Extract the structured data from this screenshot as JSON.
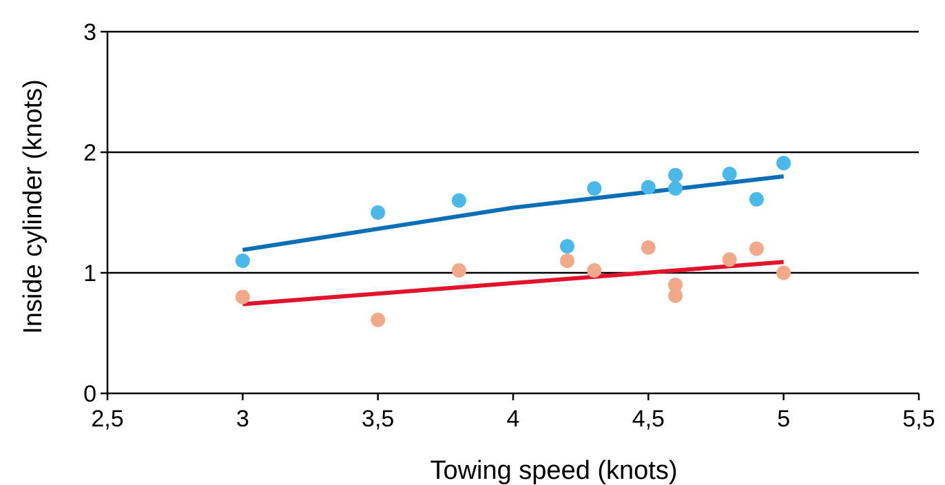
{
  "chart_data": {
    "type": "scatter",
    "title": "",
    "xlabel": "Towing speed (knots)",
    "ylabel": "Inside cylinder (knots)",
    "xlim": [
      2.5,
      5.5
    ],
    "ylim": [
      0,
      3
    ],
    "x_ticks": [
      2.5,
      3,
      3.5,
      4,
      4.5,
      5,
      5.5
    ],
    "x_tick_labels": [
      "2,5",
      "3",
      "3,5",
      "4",
      "4,5",
      "5",
      "5,5"
    ],
    "y_ticks": [
      0,
      1,
      2,
      3
    ],
    "y_tick_labels": [
      "0",
      "1",
      "2",
      "3"
    ],
    "grid": "horizontal",
    "legend": "none",
    "series": [
      {
        "color": "#4bb8ea",
        "points": [
          [
            3.0,
            1.1
          ],
          [
            3.5,
            1.5
          ],
          [
            3.8,
            1.6
          ],
          [
            4.2,
            1.22
          ],
          [
            4.3,
            1.7
          ],
          [
            4.5,
            1.71
          ],
          [
            4.6,
            1.81
          ],
          [
            4.6,
            1.7
          ],
          [
            4.8,
            1.82
          ],
          [
            4.9,
            1.61
          ],
          [
            5.0,
            1.91
          ]
        ],
        "trend": {
          "color": "#0b6fb5",
          "x": [
            3.0,
            4.0,
            5.0
          ],
          "y": [
            1.19,
            1.54,
            1.8
          ]
        }
      },
      {
        "color": "#f2a98a",
        "points": [
          [
            3.0,
            0.8
          ],
          [
            3.5,
            0.61
          ],
          [
            3.8,
            1.02
          ],
          [
            4.2,
            1.1
          ],
          [
            4.3,
            1.02
          ],
          [
            4.5,
            1.21
          ],
          [
            4.6,
            0.9
          ],
          [
            4.6,
            0.81
          ],
          [
            4.8,
            1.11
          ],
          [
            4.9,
            1.2
          ],
          [
            5.0,
            1.0
          ]
        ],
        "trend": {
          "color": "#e0142b",
          "x": [
            3.0,
            5.0
          ],
          "y": [
            0.74,
            1.09
          ]
        }
      }
    ]
  }
}
